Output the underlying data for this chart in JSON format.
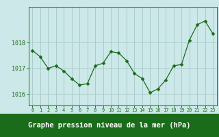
{
  "x": [
    0,
    1,
    2,
    3,
    4,
    5,
    6,
    7,
    8,
    9,
    10,
    11,
    12,
    13,
    14,
    15,
    16,
    17,
    18,
    19,
    20,
    21,
    22,
    23
  ],
  "y": [
    1017.7,
    1017.45,
    1017.0,
    1017.1,
    1016.9,
    1016.6,
    1016.35,
    1016.4,
    1017.1,
    1017.2,
    1017.65,
    1017.6,
    1017.3,
    1016.8,
    1016.6,
    1016.05,
    1016.2,
    1016.55,
    1017.1,
    1017.15,
    1018.1,
    1018.7,
    1018.85,
    1018.35
  ],
  "line_color": "#1a6b1a",
  "marker": "D",
  "marker_size": 2.5,
  "bg_color": "#cce8e8",
  "grid_color": "#aacccc",
  "ylabel_ticks": [
    1016,
    1017,
    1018
  ],
  "xlim": [
    -0.5,
    23.5
  ],
  "ylim": [
    1015.55,
    1019.4
  ],
  "tick_label_color": "#1a6b1a",
  "axis_color": "#1a6b1a",
  "bottom_bar_color": "#1a6b1a",
  "xlabel": "Graphe pression niveau de la mer (hPa)",
  "xlabel_fontsize": 7.5,
  "xtick_fontsize": 5.0,
  "ytick_fontsize": 6.0
}
